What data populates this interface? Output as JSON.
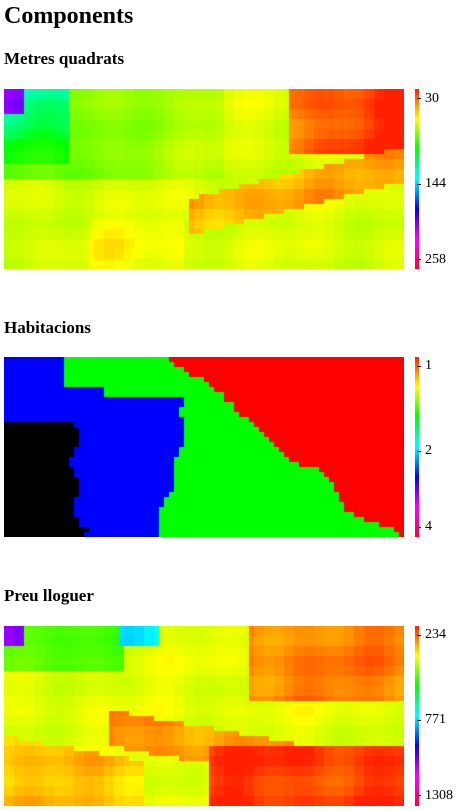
{
  "page": {
    "title": "Components"
  },
  "components": [
    {
      "title": "Metres quadrats",
      "scale": [
        "30",
        "144",
        "258"
      ]
    },
    {
      "title": "Habitacions",
      "scale": [
        "1",
        "2",
        "4"
      ]
    },
    {
      "title": "Preu lloguer",
      "scale": [
        "234",
        "771",
        "1308"
      ]
    }
  ],
  "colors": {
    "scale_gradient": [
      "#ff2000",
      "#ffff00",
      "#00ff00",
      "#00ffff",
      "#0000ff",
      "#ff00ff",
      "#ff0033"
    ],
    "habitacions_regions": [
      "#ff0000",
      "#00ff00",
      "#0000ff",
      "#000000"
    ]
  }
}
